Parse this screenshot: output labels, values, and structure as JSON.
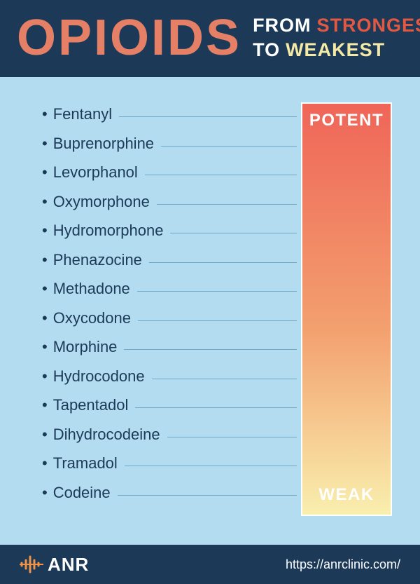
{
  "header": {
    "title_main": "OPIOIDS",
    "title_main_color": "#e58066",
    "subtitle_line1_word1": "FROM",
    "subtitle_line1_word1_color": "#ffffff",
    "subtitle_line1_word2": "STRONGEST",
    "subtitle_line1_word2_color": "#e25842",
    "subtitle_line2_word1": "TO",
    "subtitle_line2_word1_color": "#ffffff",
    "subtitle_line2_word2": "WEAKEST",
    "subtitle_line2_word2_color": "#f4eaa6",
    "background_color": "#1c3a57"
  },
  "content": {
    "background_color": "#b3dcf0",
    "drugs": [
      "Fentanyl",
      "Buprenorphine",
      "Levorphanol",
      "Oxymorphone",
      "Hydromorphone",
      "Phenazocine",
      "Methadone",
      "Oxycodone",
      "Morphine",
      "Hydrocodone",
      "Tapentadol",
      "Dihydrocodeine",
      "Tramadol",
      "Codeine"
    ],
    "text_color": "#1c3a57",
    "connector_color": "#6ea9c9",
    "scale": {
      "top_label": "POTENT",
      "bottom_label": "WEAK",
      "gradient_top": "#ef6558",
      "gradient_mid": "#f3a06f",
      "gradient_bottom": "#f9efae",
      "border_color": "#ffffff",
      "label_color": "#ffffff"
    }
  },
  "footer": {
    "background_color": "#1c3a57",
    "brand_text": "ANR",
    "brand_icon_color": "#f09248",
    "url": "https://anrclinic.com/"
  }
}
